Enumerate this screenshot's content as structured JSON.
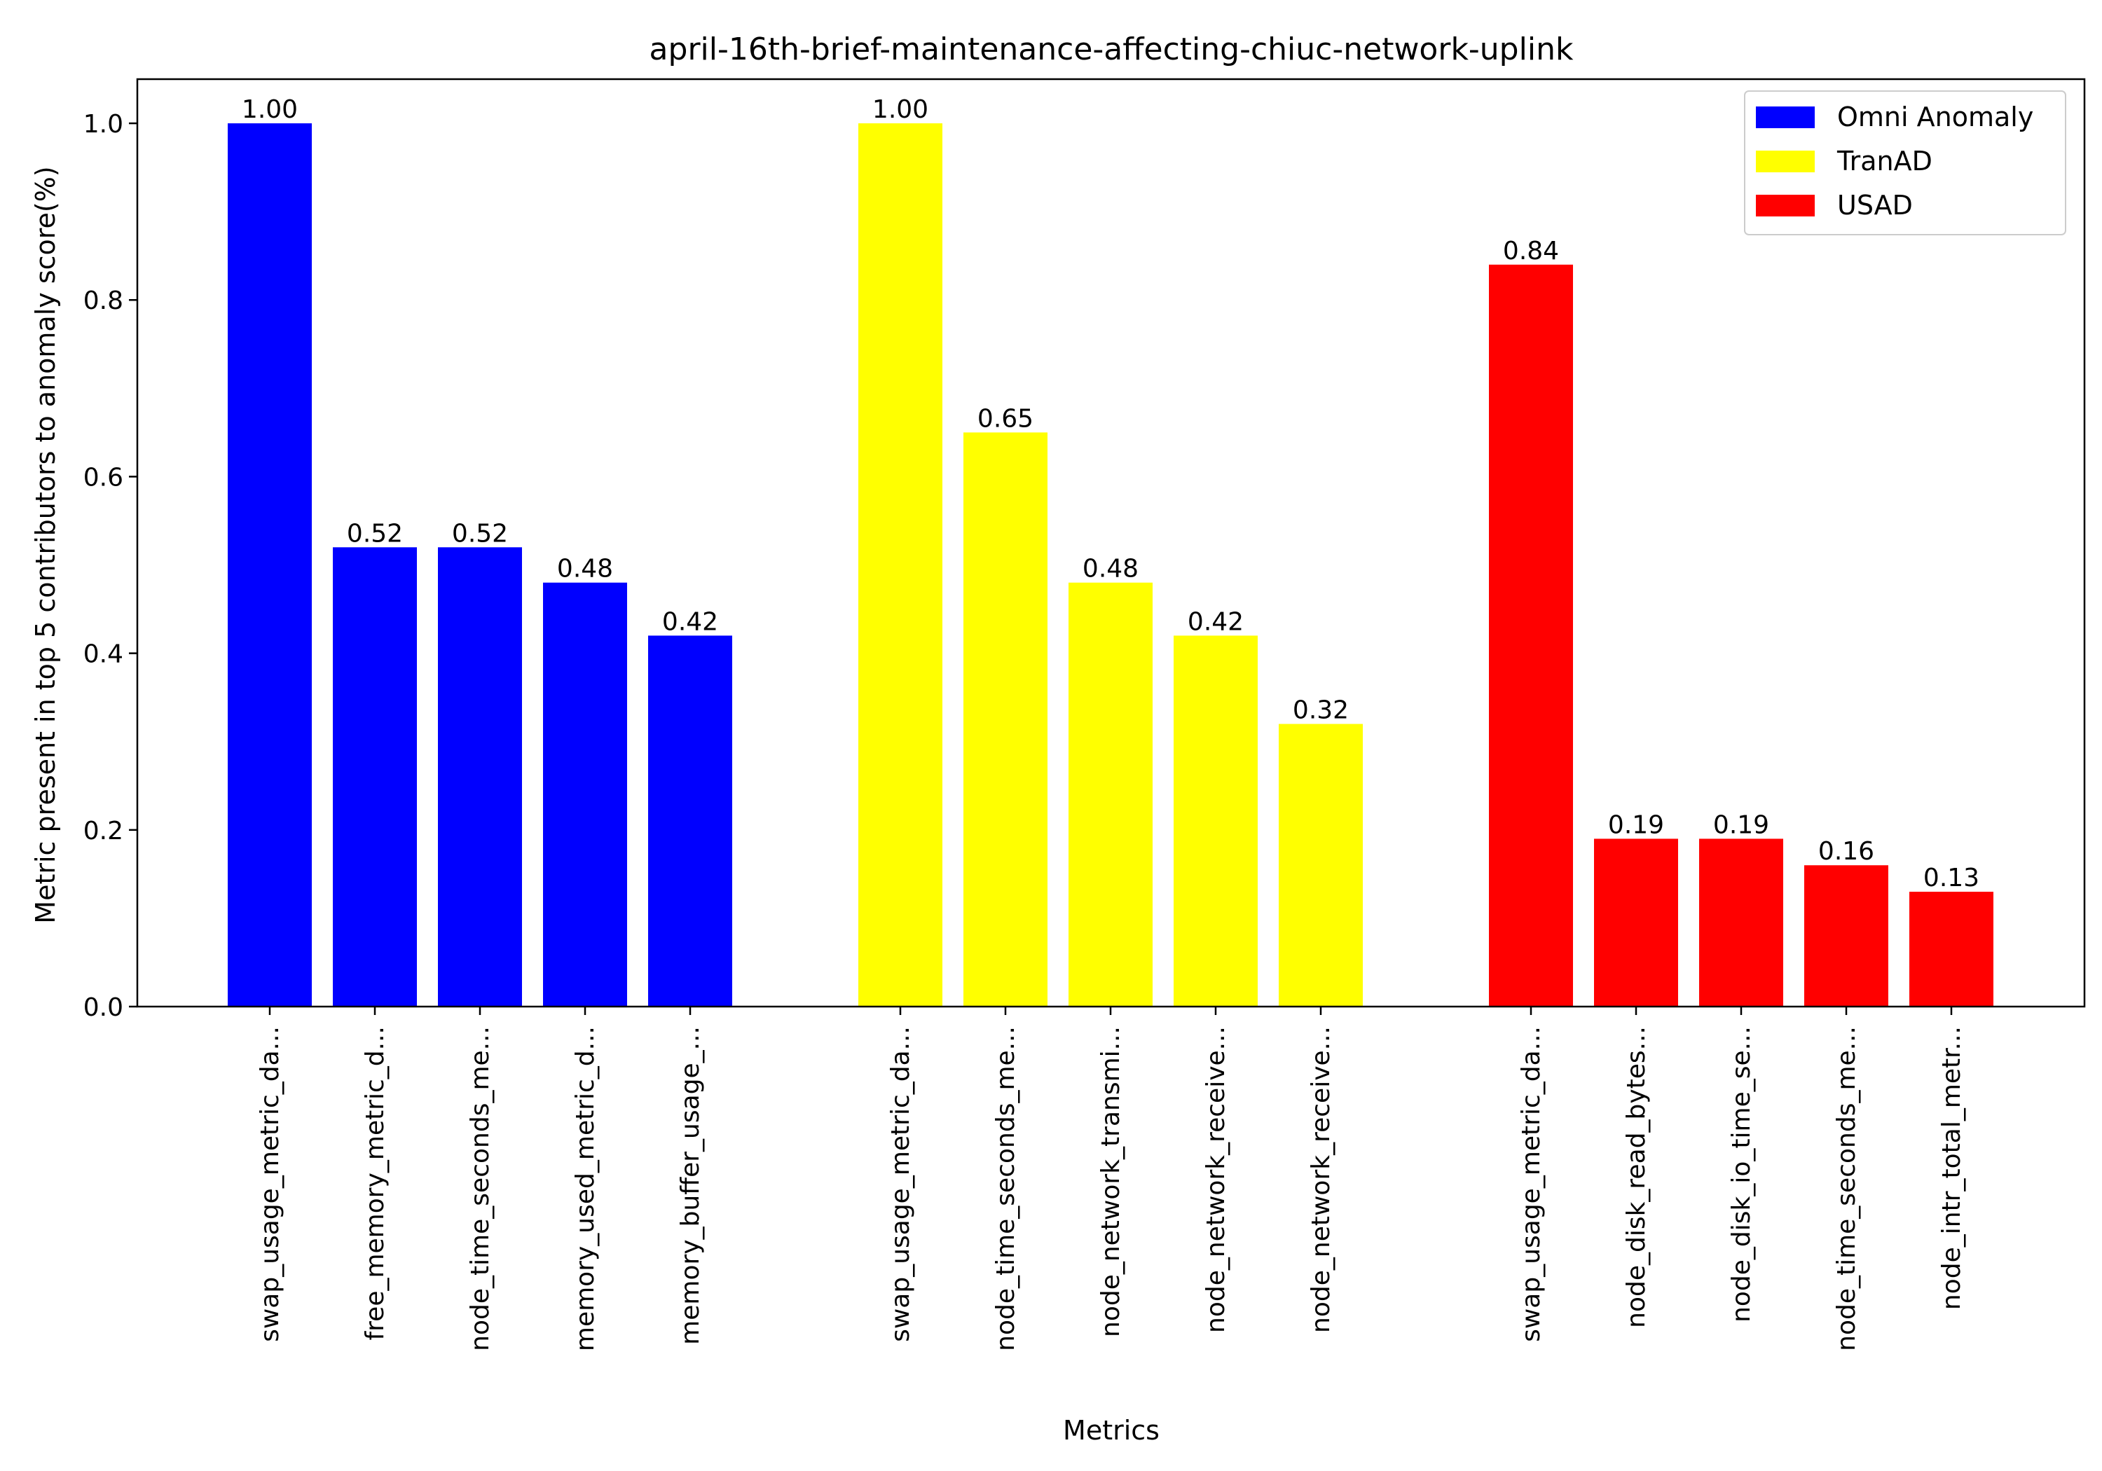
{
  "chart_data": {
    "type": "bar",
    "title": "april-16th-brief-maintenance-affecting-chiuc-network-uplink",
    "xlabel": "Metrics",
    "ylabel": "Metric present in top 5 contributors to anomaly score(%)",
    "ylim": [
      0,
      1.05
    ],
    "yticks": [
      "0.0",
      "0.2",
      "0.4",
      "0.6",
      "0.8",
      "1.0"
    ],
    "grid": false,
    "legend_position": "top-right",
    "series": [
      {
        "name": "Omni Anomaly",
        "color": "#0000ff",
        "categories": [
          "swap_usage_metric_da...",
          "free_memory_metric_d...",
          "node_time_seconds_me...",
          "memory_used_metric_d...",
          "memory_buffer_usage_..."
        ],
        "values": [
          1.0,
          0.52,
          0.52,
          0.48,
          0.42
        ],
        "labels": [
          "1.00",
          "0.52",
          "0.52",
          "0.48",
          "0.42"
        ]
      },
      {
        "name": "TranAD",
        "color": "#ffff00",
        "categories": [
          "swap_usage_metric_da...",
          "node_time_seconds_me...",
          "node_network_transmi...",
          "node_network_receive...",
          "node_network_receive..."
        ],
        "values": [
          1.0,
          0.65,
          0.48,
          0.42,
          0.32
        ],
        "labels": [
          "1.00",
          "0.65",
          "0.48",
          "0.42",
          "0.32"
        ]
      },
      {
        "name": "USAD",
        "color": "#ff0000",
        "categories": [
          "swap_usage_metric_da...",
          "node_disk_read_bytes...",
          "node_disk_io_time_se...",
          "node_time_seconds_me...",
          "node_intr_total_metr..."
        ],
        "values": [
          0.84,
          0.19,
          0.19,
          0.16,
          0.13
        ],
        "labels": [
          "0.84",
          "0.19",
          "0.19",
          "0.16",
          "0.13"
        ]
      }
    ]
  }
}
